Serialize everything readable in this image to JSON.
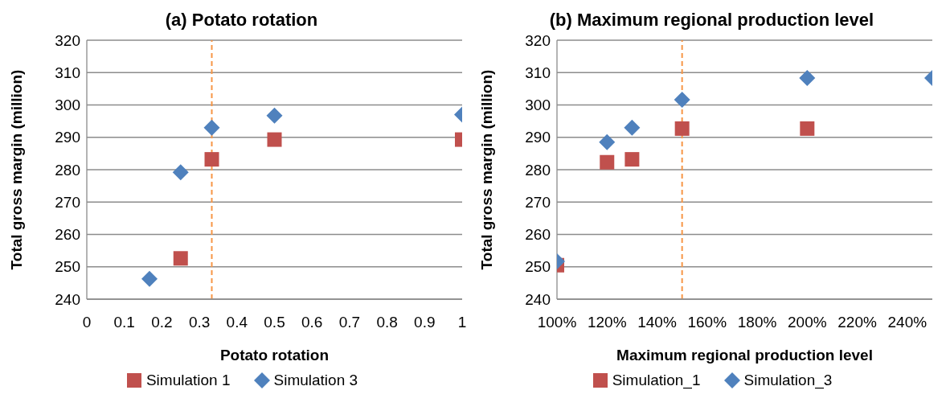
{
  "chart_data": [
    {
      "type": "scatter",
      "title": "(a) Potato rotation",
      "xlabel": "Potato rotation",
      "ylabel": "Total gross margin (million)",
      "xlim": [
        0,
        1
      ],
      "xticks": [
        0,
        0.1,
        0.2,
        0.3,
        0.4,
        0.5,
        0.6,
        0.7,
        0.8,
        0.9,
        1
      ],
      "ylim": [
        240,
        320
      ],
      "yticks": [
        240,
        250,
        260,
        270,
        280,
        290,
        300,
        310,
        320
      ],
      "grid": "y",
      "legend": "bottom",
      "series": [
        {
          "name": "Simulation 1",
          "color": "#c0504d",
          "marker": "square",
          "x": [
            0.25,
            0.333,
            0.5,
            1
          ],
          "values": [
            252.6,
            283.2,
            289.3,
            289.3
          ]
        },
        {
          "name": "Simulation 3",
          "color": "#4f81bd",
          "marker": "diamond",
          "x": [
            0.167,
            0.25,
            0.333,
            0.5,
            1
          ],
          "values": [
            246.3,
            279.2,
            293,
            296.7,
            297
          ]
        }
      ],
      "ref_lines": [
        {
          "axis": "x",
          "value": 0.333,
          "color": "#f79646",
          "line_style": "dashed"
        }
      ]
    },
    {
      "type": "scatter",
      "title": "(b) Maximum regional production level",
      "xlabel": "Maximum regional production level",
      "ylabel": "Total gross margin (million)",
      "xlim": [
        100,
        250
      ],
      "xticks": [
        {
          "value": 100,
          "label": "100%"
        },
        {
          "value": 120,
          "label": "120%"
        },
        {
          "value": 140,
          "label": "140%"
        },
        {
          "value": 160,
          "label": "160%"
        },
        {
          "value": 180,
          "label": "180%"
        },
        {
          "value": 200,
          "label": "200%"
        },
        {
          "value": 220,
          "label": "220%"
        },
        {
          "value": 240,
          "label": "240%"
        }
      ],
      "ylim": [
        240,
        320
      ],
      "yticks": [
        240,
        250,
        260,
        270,
        280,
        290,
        300,
        310,
        320
      ],
      "grid": "y",
      "legend": "bottom",
      "series": [
        {
          "name": "Simulation_1",
          "color": "#c0504d",
          "marker": "square",
          "x": [
            100,
            120,
            130,
            150,
            200
          ],
          "values": [
            250.5,
            282.3,
            283.2,
            292.7,
            292.7
          ]
        },
        {
          "name": "Simulation_3",
          "color": "#4f81bd",
          "marker": "diamond",
          "x": [
            100,
            120,
            130,
            150,
            200,
            250
          ],
          "values": [
            251.7,
            288.5,
            293,
            301.6,
            308.3,
            308.3
          ]
        }
      ],
      "ref_lines": [
        {
          "axis": "x",
          "value": 150,
          "color": "#f79646",
          "line_style": "dashed"
        }
      ]
    }
  ]
}
